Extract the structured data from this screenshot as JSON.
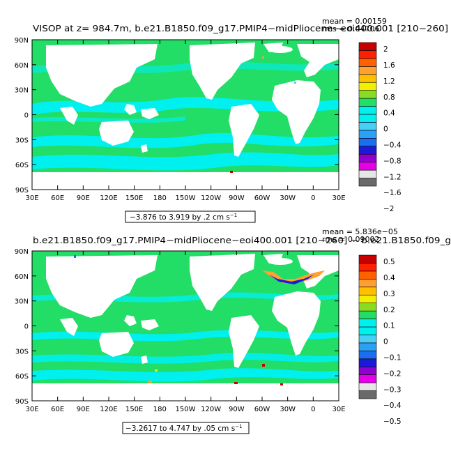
{
  "colors": {
    "land": "#ffffff",
    "frame": "#000000",
    "levels": [
      "#6a6a6a",
      "#e6e6e6",
      "#e600e6",
      "#9000d0",
      "#1a1ad8",
      "#1a6ef0",
      "#2aa0f8",
      "#46d0f8",
      "#00f0f0",
      "#00f0f0",
      "#22dd66",
      "#88dd22",
      "#f0f000",
      "#ffc000",
      "#ffa030",
      "#ff6000",
      "#ff2000",
      "#c80000"
    ]
  },
  "map_axes": {
    "lon_ticks": [
      "30E",
      "60E",
      "90E",
      "120E",
      "150E",
      "180",
      "150W",
      "120W",
      "90W",
      "60W",
      "30W",
      "0",
      "30E"
    ],
    "lat_ticks": [
      "90N",
      "60N",
      "30N",
      "0",
      "30S",
      "60S",
      "90S"
    ]
  },
  "chart_data": [
    {
      "type": "heatmap",
      "title": "VISOP at z= 984.7m, b.e21.B1850.f09_g17.PMIP4−midPliocene−eoi400.001 [210−260]",
      "stats": {
        "mean": "mean = 0.00159",
        "rms": "rms = 0.04706"
      },
      "range_label": "−3.876 to 3.919 by .2 cm s",
      "range_unit_exp": "−1",
      "x_range": [
        30,
        390
      ],
      "y_range": [
        -90,
        90
      ],
      "colorbar_labels": [
        "2",
        "1.6",
        "1.2",
        "0.8",
        "0.4",
        "0",
        "−0.4",
        "−0.8",
        "−1.2",
        "−1.6",
        "−2"
      ]
    },
    {
      "type": "heatmap",
      "title": "b.e21.B1850.f09_g17.PMIP4−midPliocene−eoi400.001 [210−260] − b.e21.B1850.f09_g",
      "stats": {
        "mean": "mean = 5.836e−05",
        "rms": "rms = 0.09002"
      },
      "range_label": "−3.2617 to 4.747 by .05 cm s",
      "range_unit_exp": "−1",
      "x_range": [
        30,
        390
      ],
      "y_range": [
        -90,
        90
      ],
      "colorbar_labels": [
        "0.5",
        "0.4",
        "0.3",
        "0.2",
        "0.1",
        "0",
        "−0.1",
        "−0.2",
        "−0.3",
        "−0.4",
        "−0.5"
      ]
    }
  ]
}
